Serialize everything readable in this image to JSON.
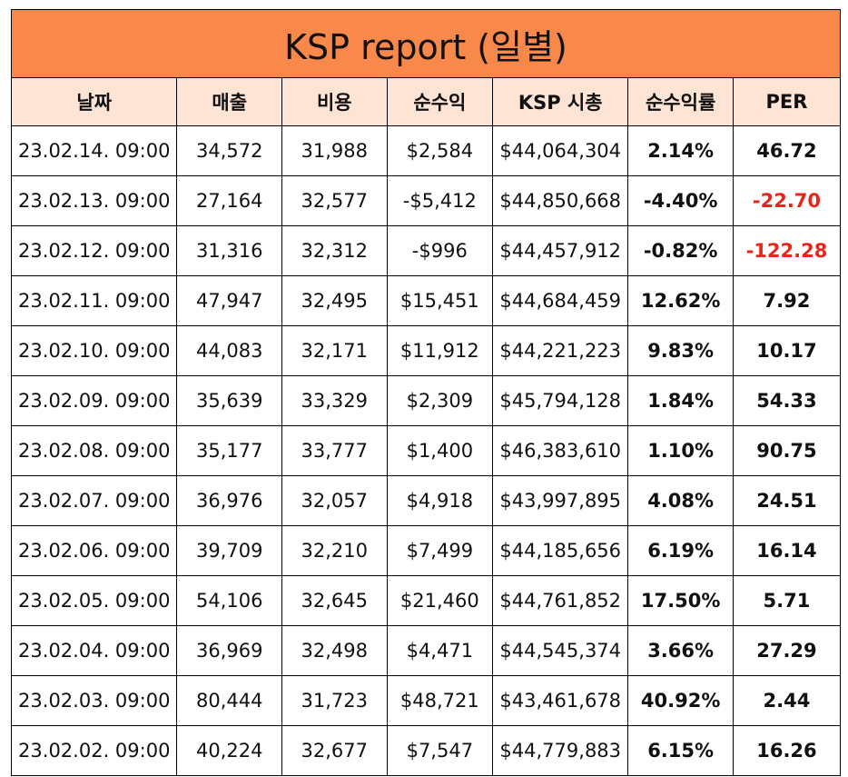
{
  "report": {
    "title": "KSP report (일별)",
    "colors": {
      "title_bg": "#F9894A",
      "header_bg": "#FDE4D4",
      "negative_per": "#E8251C"
    },
    "headers": [
      "날짜",
      "매출",
      "비용",
      "순수익",
      "KSP 시총",
      "순수익률",
      "PER"
    ],
    "rows": [
      [
        "23.02.14. 09:00",
        "34,572",
        "31,988",
        "$2,584",
        "$44,064,304",
        "2.14%",
        "46.72"
      ],
      [
        "23.02.13. 09:00",
        "27,164",
        "32,577",
        "-$5,412",
        "$44,850,668",
        "-4.40%",
        "-22.70"
      ],
      [
        "23.02.12. 09:00",
        "31,316",
        "32,312",
        "-$996",
        "$44,457,912",
        "-0.82%",
        "-122.28"
      ],
      [
        "23.02.11. 09:00",
        "47,947",
        "32,495",
        "$15,451",
        "$44,684,459",
        "12.62%",
        "7.92"
      ],
      [
        "23.02.10. 09:00",
        "44,083",
        "32,171",
        "$11,912",
        "$44,221,223",
        "9.83%",
        "10.17"
      ],
      [
        "23.02.09. 09:00",
        "35,639",
        "33,329",
        "$2,309",
        "$45,794,128",
        "1.84%",
        "54.33"
      ],
      [
        "23.02.08. 09:00",
        "35,177",
        "33,777",
        "$1,400",
        "$46,383,610",
        "1.10%",
        "90.75"
      ],
      [
        "23.02.07. 09:00",
        "36,976",
        "32,057",
        "$4,918",
        "$43,997,895",
        "4.08%",
        "24.51"
      ],
      [
        "23.02.06. 09:00",
        "39,709",
        "32,210",
        "$7,499",
        "$44,185,656",
        "6.19%",
        "16.14"
      ],
      [
        "23.02.05. 09:00",
        "54,106",
        "32,645",
        "$21,460",
        "$44,761,852",
        "17.50%",
        "5.71"
      ],
      [
        "23.02.04. 09:00",
        "36,969",
        "32,498",
        "$4,471",
        "$44,545,374",
        "3.66%",
        "27.29"
      ],
      [
        "23.02.03. 09:00",
        "80,444",
        "31,723",
        "$48,721",
        "$43,461,678",
        "40.92%",
        "2.44"
      ],
      [
        "23.02.02. 09:00",
        "40,224",
        "32,677",
        "$7,547",
        "$44,779,883",
        "6.15%",
        "16.26"
      ]
    ]
  }
}
